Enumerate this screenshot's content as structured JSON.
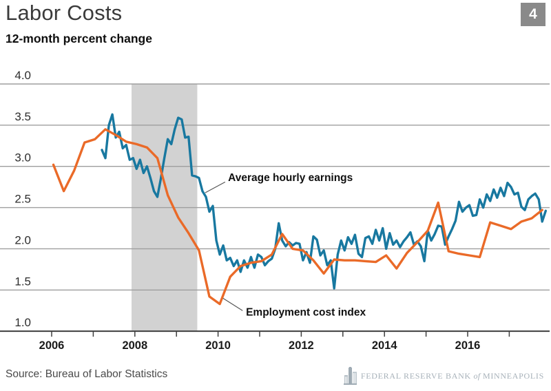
{
  "header": {
    "title": "Labor Costs",
    "subtitle": "12-month percent change",
    "badge": "4"
  },
  "footer": {
    "source": "Source: Bureau of Labor Statistics",
    "logo_part1": "Federal Reserve Bank",
    "logo_part2": "of",
    "logo_part3": "Minneapolis"
  },
  "chart_data": {
    "type": "line",
    "title": "Labor Costs",
    "ylabel": "12-month percent change",
    "ylim": [
      1.0,
      4.0
    ],
    "grid": true,
    "y_axis": {
      "ticks": [
        4.0,
        3.5,
        3.0,
        2.5,
        2.0,
        1.5,
        1.0
      ]
    },
    "x_axis": {
      "tick_years": [
        2006,
        2007,
        2008,
        2009,
        2010,
        2011,
        2012,
        2013,
        2014,
        2015,
        2016,
        2017
      ],
      "labeled_years": [
        2006,
        2008,
        2010,
        2012,
        2014,
        2016
      ]
    },
    "recession_band": {
      "start": 2007.92,
      "end": 2009.5,
      "color": "#d2d2d2"
    },
    "colors": {
      "grid": "#9e9e9e",
      "axis": "#3f3f3f",
      "blue_series": "#1878a0",
      "orange_series": "#ea6a28",
      "leader_line": "#555555"
    },
    "series": [
      {
        "name": "Average hourly earnings",
        "slug": "average-hourly-earnings",
        "color": "#1878a0",
        "frequency": "monthly",
        "start_year": 2007,
        "start_month": 3,
        "values": [
          3.2,
          3.1,
          3.5,
          3.63,
          3.35,
          3.42,
          3.22,
          3.26,
          3.08,
          3.1,
          2.97,
          3.08,
          2.92,
          3.0,
          2.86,
          2.7,
          2.63,
          2.85,
          3.1,
          3.33,
          3.27,
          3.45,
          3.59,
          3.57,
          3.35,
          3.36,
          2.89,
          2.88,
          2.86,
          2.7,
          2.63,
          2.45,
          2.52,
          2.1,
          1.93,
          2.04,
          1.86,
          1.89,
          1.79,
          1.86,
          1.72,
          1.86,
          1.77,
          1.9,
          1.77,
          1.93,
          1.9,
          1.8,
          1.85,
          1.88,
          2.0,
          2.31,
          2.1,
          2.03,
          2.08,
          2.04,
          2.07,
          2.06,
          1.86,
          1.96,
          1.83,
          2.15,
          2.11,
          1.92,
          1.98,
          1.8,
          1.86,
          1.52,
          1.93,
          2.1,
          1.98,
          2.14,
          2.06,
          2.17,
          1.94,
          1.9,
          2.13,
          2.15,
          2.06,
          2.23,
          2.1,
          2.25,
          2.0,
          2.19,
          2.05,
          2.1,
          2.02,
          2.09,
          2.14,
          2.2,
          2.05,
          2.09,
          2.03,
          1.85,
          2.22,
          2.1,
          2.18,
          2.28,
          2.27,
          2.05,
          2.15,
          2.24,
          2.34,
          2.57,
          2.45,
          2.5,
          2.53,
          2.4,
          2.41,
          2.6,
          2.5,
          2.66,
          2.58,
          2.72,
          2.62,
          2.74,
          2.64,
          2.8,
          2.75,
          2.66,
          2.68,
          2.51,
          2.47,
          2.6,
          2.64,
          2.67,
          2.6,
          2.33,
          2.46
        ]
      },
      {
        "name": "Employment cost index",
        "slug": "employment-cost-index",
        "color": "#ea6a28",
        "frequency": "quarterly",
        "start_year": 2006,
        "start_month": 1,
        "values": [
          3.02,
          2.7,
          2.95,
          3.29,
          3.33,
          3.45,
          3.38,
          3.3,
          3.27,
          3.23,
          3.1,
          2.65,
          2.38,
          2.19,
          1.98,
          1.42,
          1.33,
          1.66,
          1.79,
          1.83,
          1.85,
          1.93,
          2.18,
          2.0,
          1.98,
          1.86,
          1.7,
          1.87,
          1.86,
          1.86,
          1.85,
          1.84,
          1.92,
          1.76,
          1.95,
          2.08,
          2.22,
          2.56,
          1.97,
          1.94,
          1.92,
          1.9,
          2.32,
          2.28,
          2.24,
          2.33,
          2.37,
          2.47
        ]
      }
    ],
    "annotations": [
      {
        "text": "Average hourly earnings",
        "x": 2010.24,
        "y": 2.82,
        "line": [
          2009.69,
          2.68,
          2010.17,
          2.81
        ]
      },
      {
        "text": "Employment cost index",
        "x": 2010.67,
        "y": 1.19,
        "line": [
          2010.12,
          1.4,
          2010.59,
          1.25
        ]
      }
    ]
  }
}
